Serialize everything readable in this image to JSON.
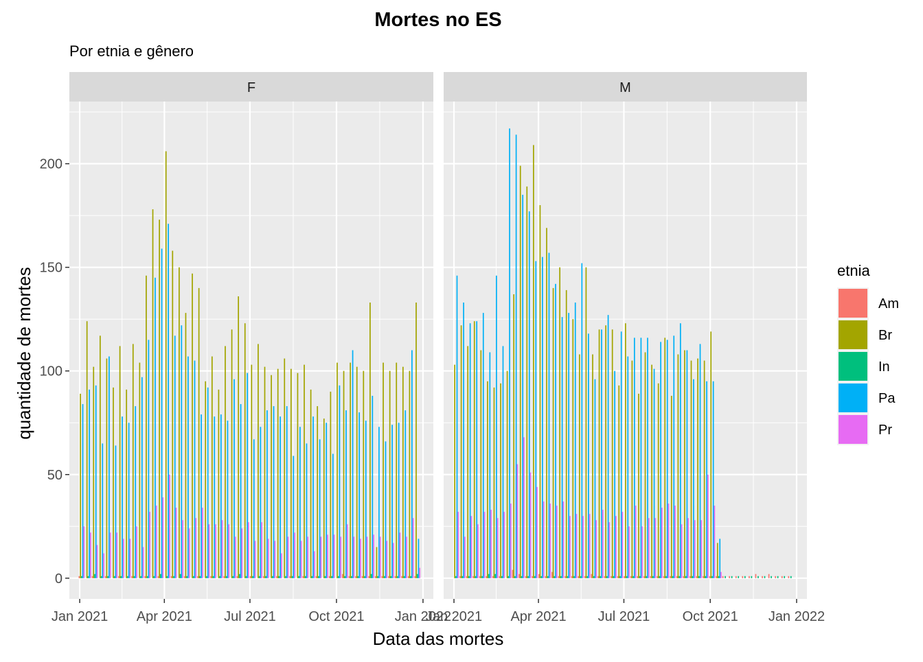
{
  "chart_data": {
    "type": "bar",
    "title": "Mortes no ES",
    "subtitle": "Por etnia e gênero",
    "xlabel": "Data das mortes",
    "ylabel": "quantidade de mortes",
    "x_ticks": [
      "Jan 2021",
      "Apr 2021",
      "Jul 2021",
      "Oct 2021",
      "Jan 2022"
    ],
    "y_ticks": [
      0,
      50,
      100,
      150,
      200
    ],
    "ylim": [
      -10,
      230
    ],
    "xlim": [
      "2020-12-21",
      "2022-01-12"
    ],
    "grid": true,
    "legend": {
      "title": "etnia",
      "position": "right",
      "entries": [
        {
          "name": "Am",
          "color": "#F8766D"
        },
        {
          "name": "Br",
          "color": "#A3A500"
        },
        {
          "name": "In",
          "color": "#00BF7D"
        },
        {
          "name": "Pa",
          "color": "#00B0F6"
        },
        {
          "name": "Pr",
          "color": "#E76BF3"
        }
      ]
    },
    "weeks": [
      "2021-01-03",
      "2021-01-10",
      "2021-01-17",
      "2021-01-24",
      "2021-01-31",
      "2021-02-07",
      "2021-02-14",
      "2021-02-21",
      "2021-02-28",
      "2021-03-07",
      "2021-03-14",
      "2021-03-21",
      "2021-03-28",
      "2021-04-04",
      "2021-04-11",
      "2021-04-18",
      "2021-04-25",
      "2021-05-02",
      "2021-05-09",
      "2021-05-16",
      "2021-05-23",
      "2021-05-30",
      "2021-06-06",
      "2021-06-13",
      "2021-06-20",
      "2021-06-27",
      "2021-07-04",
      "2021-07-11",
      "2021-07-18",
      "2021-07-25",
      "2021-08-01",
      "2021-08-08",
      "2021-08-15",
      "2021-08-22",
      "2021-08-29",
      "2021-09-05",
      "2021-09-12",
      "2021-09-19",
      "2021-09-26",
      "2021-10-03",
      "2021-10-10",
      "2021-10-17",
      "2021-10-24",
      "2021-10-31",
      "2021-11-07",
      "2021-11-14",
      "2021-11-21",
      "2021-11-28",
      "2021-12-05",
      "2021-12-12",
      "2021-12-19",
      "2021-12-26",
      "2022-01-02"
    ],
    "panels": [
      {
        "name": "F",
        "series": [
          {
            "name": "Am",
            "values": [
              1,
              0,
              1,
              0,
              1,
              0,
              1,
              0,
              1,
              0,
              1,
              0,
              1,
              0,
              1,
              0,
              1,
              0,
              1,
              0,
              1,
              0,
              1,
              0,
              1,
              0,
              1,
              0,
              1,
              0,
              1,
              0,
              1,
              0,
              1,
              0,
              1,
              0,
              1,
              0,
              2,
              1,
              1,
              1,
              1,
              1,
              1,
              1,
              1,
              1,
              1,
              1,
              0
            ]
          },
          {
            "name": "Br",
            "values": [
              89,
              124,
              102,
              117,
              106,
              92,
              112,
              91,
              113,
              104,
              146,
              178,
              173,
              206,
              158,
              150,
              128,
              147,
              140,
              95,
              107,
              91,
              112,
              120,
              136,
              123,
              103,
              113,
              102,
              98,
              101,
              106,
              101,
              99,
              103,
              91,
              83,
              77,
              90,
              104,
              100,
              104,
              102,
              100,
              133,
              15,
              104,
              100,
              104,
              102,
              100,
              133,
              0
            ]
          },
          {
            "name": "In",
            "values": [
              1,
              1,
              2,
              1,
              1,
              1,
              1,
              1,
              1,
              1,
              1,
              1,
              2,
              1,
              1,
              2,
              1,
              1,
              1,
              1,
              1,
              1,
              1,
              1,
              2,
              1,
              1,
              1,
              1,
              1,
              1,
              1,
              1,
              1,
              1,
              1,
              1,
              1,
              1,
              1,
              1,
              1,
              1,
              1,
              2,
              1,
              1,
              1,
              1,
              1,
              1,
              2,
              0
            ]
          },
          {
            "name": "Pa",
            "values": [
              84,
              91,
              93,
              65,
              107,
              64,
              78,
              75,
              83,
              97,
              115,
              145,
              159,
              171,
              117,
              122,
              107,
              105,
              79,
              92,
              78,
              79,
              76,
              96,
              84,
              99,
              67,
              73,
              81,
              83,
              78,
              83,
              59,
              73,
              65,
              78,
              67,
              75,
              60,
              93,
              81,
              110,
              80,
              76,
              88,
              73,
              66,
              74,
              75,
              81,
              110,
              19,
              0
            ]
          },
          {
            "name": "Pr",
            "values": [
              25,
              22,
              16,
              12,
              22,
              22,
              19,
              19,
              25,
              15,
              32,
              35,
              39,
              50,
              34,
              28,
              24,
              29,
              34,
              26,
              26,
              28,
              26,
              20,
              24,
              27,
              18,
              27,
              19,
              18,
              12,
              20,
              22,
              18,
              20,
              13,
              20,
              21,
              21,
              20,
              26,
              20,
              19,
              20,
              21,
              20,
              18,
              17,
              22,
              20,
              29,
              5,
              0
            ]
          }
        ]
      },
      {
        "name": "M",
        "series": [
          {
            "name": "Am",
            "values": [
              0,
              1,
              1,
              1,
              1,
              1,
              1,
              1,
              0,
              4,
              2,
              1,
              1,
              2,
              1,
              3,
              1,
              1,
              1,
              1,
              1,
              2,
              1,
              1,
              1,
              1,
              1,
              1,
              1,
              1,
              1,
              1,
              1,
              1,
              1,
              1,
              1,
              1,
              1,
              1,
              1,
              1,
              1,
              1,
              1,
              1,
              2,
              1,
              2,
              1,
              1,
              1,
              0
            ]
          },
          {
            "name": "Br",
            "values": [
              103,
              122,
              112,
              124,
              110,
              95,
              92,
              94,
              100,
              137,
              199,
              189,
              209,
              180,
              169,
              140,
              150,
              139,
              125,
              108,
              150,
              108,
              120,
              122,
              120,
              93,
              123,
              105,
              89,
              109,
              103,
              94,
              116,
              88,
              108,
              110,
              105,
              106,
              105,
              119,
              17,
              0,
              0,
              0,
              0,
              0,
              0,
              0,
              0,
              0,
              0,
              0,
              0
            ]
          },
          {
            "name": "In",
            "values": [
              1,
              1,
              1,
              1,
              1,
              2,
              2,
              1,
              1,
              1,
              1,
              1,
              1,
              1,
              1,
              1,
              1,
              1,
              1,
              1,
              1,
              1,
              1,
              1,
              1,
              1,
              1,
              1,
              1,
              1,
              1,
              1,
              1,
              1,
              1,
              1,
              1,
              1,
              1,
              1,
              1,
              1,
              1,
              1,
              1,
              1,
              1,
              1,
              1,
              1,
              1,
              1,
              0
            ]
          },
          {
            "name": "Pa",
            "values": [
              146,
              133,
              123,
              124,
              128,
              109,
              146,
              112,
              217,
              214,
              185,
              177,
              153,
              155,
              157,
              142,
              126,
              128,
              133,
              152,
              118,
              96,
              120,
              127,
              100,
              119,
              107,
              116,
              116,
              116,
              101,
              114,
              115,
              117,
              123,
              110,
              96,
              113,
              95,
              95,
              19,
              0,
              0,
              0,
              0,
              0,
              0,
              0,
              0,
              0,
              0,
              0,
              0
            ]
          },
          {
            "name": "Pr",
            "values": [
              32,
              20,
              30,
              26,
              32,
              33,
              29,
              32,
              36,
              55,
              68,
              51,
              44,
              37,
              36,
              35,
              37,
              30,
              31,
              30,
              31,
              28,
              33,
              27,
              30,
              32,
              25,
              35,
              25,
              29,
              29,
              34,
              36,
              35,
              26,
              29,
              28,
              28,
              50,
              35,
              3,
              0,
              0,
              0,
              0,
              0,
              0,
              0,
              0,
              0,
              0,
              0,
              0
            ]
          }
        ]
      }
    ]
  }
}
